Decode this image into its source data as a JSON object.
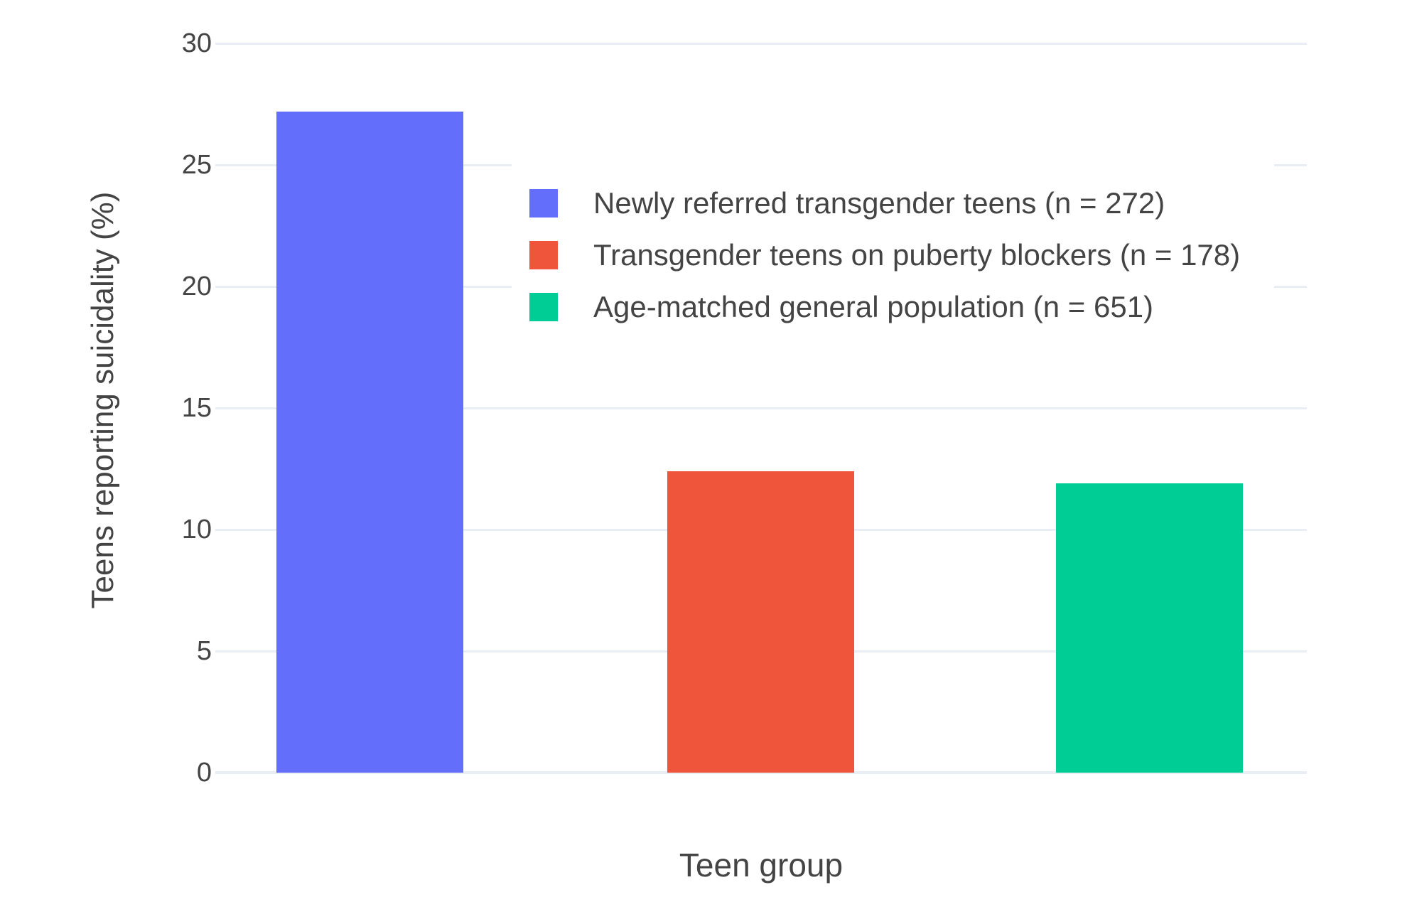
{
  "chart_data": {
    "type": "bar",
    "title": "",
    "xlabel": "Teen group",
    "ylabel": "Teens reporting suicidality (%)",
    "categories": [
      "Newly referred transgender teens (n = 272)",
      "Transgender teens on puberty blockers (n = 178)",
      "Age-matched general population (n = 651)"
    ],
    "values": [
      27.2,
      12.4,
      11.9
    ],
    "colors": [
      "#636EFA",
      "#EF553B",
      "#00CC96"
    ],
    "ylim": [
      0,
      30
    ],
    "yticks": [
      0,
      5,
      10,
      15,
      20,
      25,
      30
    ],
    "x_tick_labels": [],
    "grid": true,
    "legend_position": "inside-top-center"
  },
  "colors": {
    "grid": "#E9EDF4",
    "text": "#444444",
    "background": "#FFFFFF"
  }
}
